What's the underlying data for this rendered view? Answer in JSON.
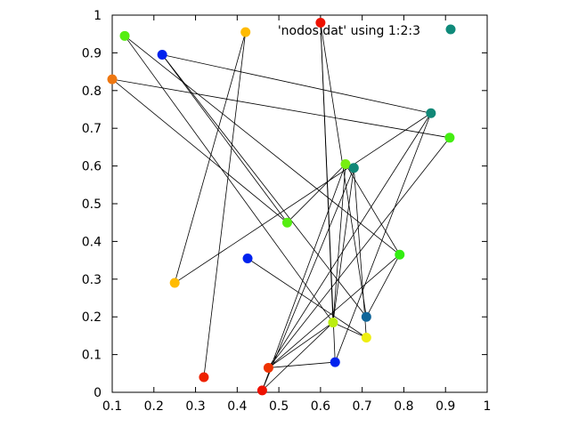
{
  "chart_data": {
    "type": "scatter",
    "legend": {
      "label": "'nodos.dat' using 1:2:3",
      "color": "#0f8a7a",
      "position": "top-right"
    },
    "xlim": [
      0.1,
      1
    ],
    "ylim": [
      0,
      1
    ],
    "xticks": [
      "0.1",
      "0.2",
      "0.3",
      "0.4",
      "0.5",
      "0.6",
      "0.7",
      "0.8",
      "0.9",
      "1"
    ],
    "yticks": [
      "0",
      "0.1",
      "0.2",
      "0.3",
      "0.4",
      "0.5",
      "0.6",
      "0.7",
      "0.8",
      "0.9",
      "1"
    ],
    "grid": false,
    "points": [
      {
        "x": 0.13,
        "y": 0.945,
        "color": "#55ee11"
      },
      {
        "x": 0.42,
        "y": 0.955,
        "color": "#ffbb00"
      },
      {
        "x": 0.22,
        "y": 0.895,
        "color": "#0022ee"
      },
      {
        "x": 0.1,
        "y": 0.83,
        "color": "#ee7711"
      },
      {
        "x": 0.6,
        "y": 0.98,
        "color": "#ee1100"
      },
      {
        "x": 0.865,
        "y": 0.74,
        "color": "#118877"
      },
      {
        "x": 0.91,
        "y": 0.675,
        "color": "#44ee11"
      },
      {
        "x": 0.66,
        "y": 0.605,
        "color": "#77ee11"
      },
      {
        "x": 0.68,
        "y": 0.595,
        "color": "#118877"
      },
      {
        "x": 0.52,
        "y": 0.45,
        "color": "#55ee11"
      },
      {
        "x": 0.79,
        "y": 0.365,
        "color": "#33ee11"
      },
      {
        "x": 0.425,
        "y": 0.355,
        "color": "#0022ee"
      },
      {
        "x": 0.25,
        "y": 0.29,
        "color": "#ffbb00"
      },
      {
        "x": 0.71,
        "y": 0.2,
        "color": "#116699"
      },
      {
        "x": 0.63,
        "y": 0.185,
        "color": "#bbee11"
      },
      {
        "x": 0.71,
        "y": 0.145,
        "color": "#eeee11"
      },
      {
        "x": 0.635,
        "y": 0.08,
        "color": "#0022ee"
      },
      {
        "x": 0.475,
        "y": 0.065,
        "color": "#ee3300"
      },
      {
        "x": 0.32,
        "y": 0.04,
        "color": "#ee2200"
      },
      {
        "x": 0.46,
        "y": 0.005,
        "color": "#ee1100"
      }
    ],
    "edges": [
      [
        0,
        10
      ],
      [
        0,
        14
      ],
      [
        1,
        12
      ],
      [
        1,
        18
      ],
      [
        2,
        5
      ],
      [
        2,
        13
      ],
      [
        3,
        9
      ],
      [
        3,
        6
      ],
      [
        4,
        14
      ],
      [
        4,
        16
      ],
      [
        4,
        13
      ],
      [
        5,
        17
      ],
      [
        5,
        12
      ],
      [
        5,
        16
      ],
      [
        6,
        17
      ],
      [
        7,
        19
      ],
      [
        7,
        14
      ],
      [
        7,
        10
      ],
      [
        8,
        14
      ],
      [
        8,
        15
      ],
      [
        8,
        19
      ],
      [
        9,
        2
      ],
      [
        10,
        17
      ],
      [
        10,
        13
      ],
      [
        11,
        15
      ],
      [
        14,
        19
      ],
      [
        14,
        17
      ],
      [
        16,
        17
      ],
      [
        15,
        14
      ],
      [
        7,
        9
      ]
    ]
  }
}
